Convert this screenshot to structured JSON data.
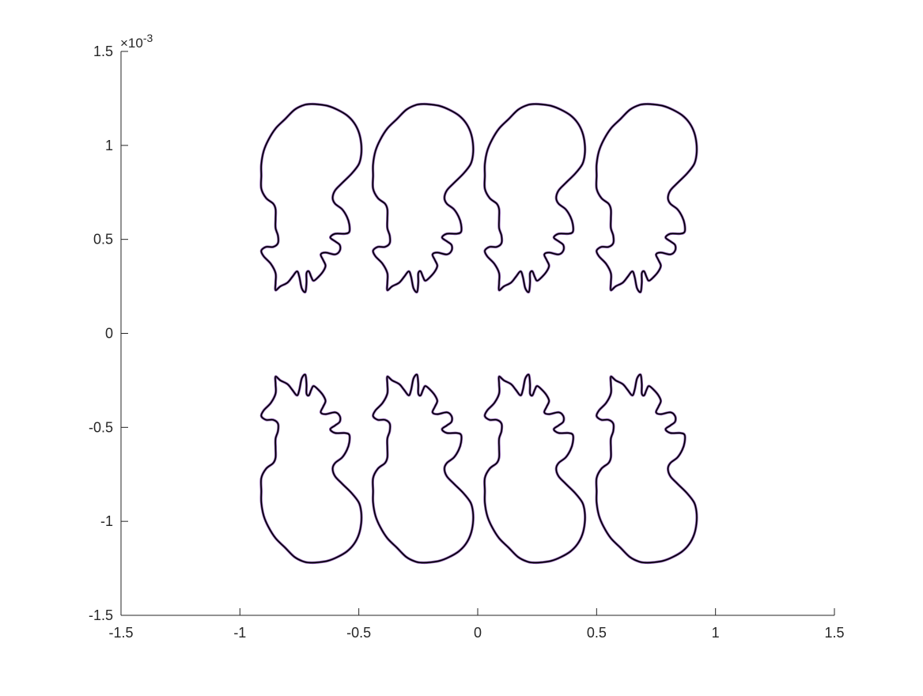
{
  "chart_data": {
    "type": "line",
    "title": "",
    "xlabel": "",
    "ylabel": "",
    "xlim": [
      -1.5,
      1.5
    ],
    "ylim": [
      -1.5,
      1.5
    ],
    "y_scale_exponent": "×10",
    "y_scale_exponent_power": "-3",
    "x_ticks": [
      {
        "value": -1.5,
        "label": "-1.5"
      },
      {
        "value": -1,
        "label": "-1"
      },
      {
        "value": -0.5,
        "label": "-0.5"
      },
      {
        "value": 0,
        "label": "0"
      },
      {
        "value": 0.5,
        "label": "0.5"
      },
      {
        "value": 1,
        "label": "1"
      },
      {
        "value": 1.5,
        "label": "1.5"
      }
    ],
    "y_ticks": [
      {
        "value": -1.5,
        "label": "-1.5"
      },
      {
        "value": -1,
        "label": "-1"
      },
      {
        "value": -0.5,
        "label": "-0.5"
      },
      {
        "value": 0,
        "label": "0"
      },
      {
        "value": 0.5,
        "label": "0.5"
      },
      {
        "value": 1,
        "label": "1"
      },
      {
        "value": 1.5,
        "label": "1.5"
      }
    ],
    "grid": false,
    "legend": "none",
    "colors": {
      "axes": "#262626",
      "curve_dark": "#000000",
      "curve_tint": "#8a5ab0"
    },
    "shape_outline": [
      [
        0,
        1.22
      ],
      [
        0.03,
        1.218
      ],
      [
        0.07,
        1.21
      ],
      [
        0.11,
        1.19
      ],
      [
        0.15,
        1.16
      ],
      [
        0.18,
        1.12
      ],
      [
        0.2,
        1.07
      ],
      [
        0.21,
        1.01
      ],
      [
        0.21,
        0.95
      ],
      [
        0.2,
        0.9
      ],
      [
        0.17,
        0.85
      ],
      [
        0.13,
        0.8
      ],
      [
        0.1,
        0.76
      ],
      [
        0.09,
        0.72
      ],
      [
        0.1,
        0.69
      ],
      [
        0.13,
        0.66
      ],
      [
        0.15,
        0.62
      ],
      [
        0.16,
        0.58
      ],
      [
        0.16,
        0.54
      ],
      [
        0.14,
        0.53
      ],
      [
        0.1,
        0.53
      ],
      [
        0.08,
        0.51
      ],
      [
        0.1,
        0.49
      ],
      [
        0.12,
        0.47
      ],
      [
        0.12,
        0.44
      ],
      [
        0.1,
        0.42
      ],
      [
        0.06,
        0.43
      ],
      [
        0.04,
        0.42
      ],
      [
        0.05,
        0.39
      ],
      [
        0.06,
        0.36
      ],
      [
        0.05,
        0.33
      ],
      [
        0.03,
        0.3
      ],
      [
        0.01,
        0.28
      ],
      [
        0,
        0.3
      ],
      [
        -0.01,
        0.33
      ],
      [
        -0.02,
        0.32
      ],
      [
        -0.02,
        0.27
      ],
      [
        -0.025,
        0.22
      ],
      [
        -0.04,
        0.24
      ],
      [
        -0.05,
        0.3
      ],
      [
        -0.06,
        0.33
      ],
      [
        -0.08,
        0.3
      ],
      [
        -0.1,
        0.27
      ],
      [
        -0.13,
        0.25
      ],
      [
        -0.15,
        0.23
      ],
      [
        -0.15,
        0.27
      ],
      [
        -0.15,
        0.32
      ],
      [
        -0.17,
        0.37
      ],
      [
        -0.2,
        0.41
      ],
      [
        -0.21,
        0.44
      ],
      [
        -0.19,
        0.46
      ],
      [
        -0.16,
        0.46
      ],
      [
        -0.14,
        0.48
      ],
      [
        -0.14,
        0.52
      ],
      [
        -0.15,
        0.56
      ],
      [
        -0.15,
        0.61
      ],
      [
        -0.15,
        0.66
      ],
      [
        -0.16,
        0.69
      ],
      [
        -0.19,
        0.72
      ],
      [
        -0.21,
        0.77
      ],
      [
        -0.21,
        0.84
      ],
      [
        -0.21,
        0.9
      ],
      [
        -0.2,
        0.97
      ],
      [
        -0.18,
        1.03
      ],
      [
        -0.15,
        1.09
      ],
      [
        -0.11,
        1.14
      ],
      [
        -0.07,
        1.19
      ],
      [
        -0.03,
        1.215
      ],
      [
        0,
        1.22
      ]
    ],
    "series": [
      {
        "center_x": -0.7,
        "y_direction": 1
      },
      {
        "center_x": -0.23,
        "y_direction": 1
      },
      {
        "center_x": 0.24,
        "y_direction": 1
      },
      {
        "center_x": 0.71,
        "y_direction": 1
      },
      {
        "center_x": -0.7,
        "y_direction": -1
      },
      {
        "center_x": -0.23,
        "y_direction": -1
      },
      {
        "center_x": 0.24,
        "y_direction": -1
      },
      {
        "center_x": 0.71,
        "y_direction": -1
      }
    ]
  }
}
